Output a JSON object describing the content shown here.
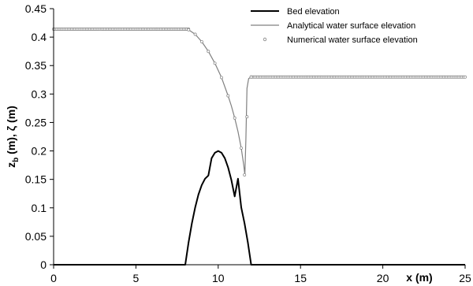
{
  "chart_data": {
    "type": "line",
    "xlabel": "x (m)",
    "ylabel_main": "z",
    "ylabel_sub": "b",
    "ylabel_rest": " (m), ζ (m)",
    "xlim": [
      0,
      25
    ],
    "ylim": [
      0,
      0.45
    ],
    "xticks": [
      0,
      5,
      10,
      15,
      20,
      25
    ],
    "yticks": [
      0,
      0.05,
      0.1,
      0.15,
      0.2,
      0.25,
      0.3,
      0.35,
      0.4,
      0.45
    ],
    "ytick_labels": [
      "0",
      "0.05",
      "0.1",
      "0.15",
      "0.2",
      "0.25",
      "0.3",
      "0.35",
      "0.4",
      "0.45"
    ],
    "grid": false,
    "legend_position": "top-right",
    "series": [
      {
        "name": "Bed elevation",
        "style": "line-thick",
        "color": "#000000",
        "x": [
          0,
          8,
          8.2,
          8.4,
          8.6,
          8.8,
          9,
          9.2,
          9.4,
          9.6,
          9.8,
          10,
          10.2,
          10.4,
          10.6,
          10.8,
          11,
          11.2,
          11.4,
          11.6,
          11.8,
          12,
          25
        ],
        "y": [
          0,
          0,
          0.0392,
          0.0728,
          0.1008,
          0.1232,
          0.14,
          0.1512,
          0.1568,
          0.1872,
          0.1968,
          0.2,
          0.1968,
          0.1872,
          0.1712,
          0.1488,
          0.12,
          0.1512,
          0.1008,
          0.0728,
          0.0392,
          0,
          0
        ]
      },
      {
        "name": "Analytical water surface elevation",
        "style": "line-thin",
        "color": "#808080",
        "x": [
          0,
          8.2,
          8.6,
          9,
          9.4,
          9.8,
          10.2,
          10.6,
          10.8,
          11,
          11.2,
          11.4,
          11.55,
          11.62,
          11.68,
          11.75,
          11.85,
          12,
          12.4,
          25
        ],
        "y": [
          0.414,
          0.413,
          0.405,
          0.392,
          0.375,
          0.354,
          0.329,
          0.297,
          0.279,
          0.258,
          0.234,
          0.205,
          0.175,
          0.158,
          0.22,
          0.31,
          0.327,
          0.33,
          0.33,
          0.33
        ]
      },
      {
        "name": "Numerical water surface elevation",
        "style": "markers",
        "color": "#808080",
        "x": [
          8.2,
          8.6,
          9,
          9.4,
          9.8,
          10.2,
          10.6,
          11,
          11.4,
          11.6,
          11.75,
          12
        ],
        "y": [
          0.413,
          0.405,
          0.392,
          0.375,
          0.354,
          0.329,
          0.297,
          0.258,
          0.205,
          0.158,
          0.26,
          0.33
        ],
        "dense_plateaus": [
          {
            "x_from": 0,
            "x_to": 8.2,
            "y": 0.414
          },
          {
            "x_from": 12,
            "x_to": 25,
            "y": 0.33
          }
        ]
      }
    ]
  }
}
